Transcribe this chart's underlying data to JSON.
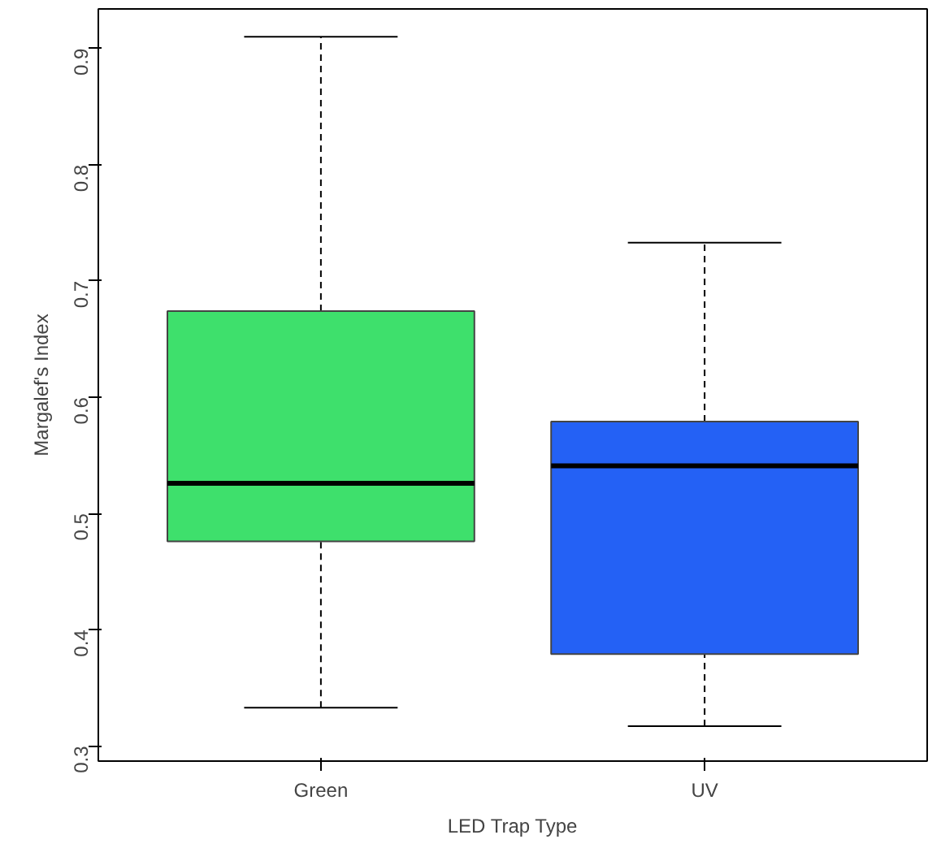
{
  "chart_data": {
    "type": "box",
    "xlabel": "LED Trap Type",
    "ylabel": "Margalef's Index",
    "categories": [
      "Green",
      "UV"
    ],
    "boxes": [
      {
        "low": 0.333,
        "q1": 0.476,
        "median": 0.526,
        "q3": 0.674,
        "high": 0.91
      },
      {
        "low": 0.317,
        "q1": 0.379,
        "median": 0.541,
        "q3": 0.579,
        "high": 0.733
      }
    ],
    "colors": [
      "#3ee06c",
      "#2461f5"
    ],
    "ylim": [
      0.287,
      0.934
    ],
    "yticks": [
      0.3,
      0.4,
      0.5,
      0.6,
      0.7,
      0.8,
      0.9
    ]
  }
}
